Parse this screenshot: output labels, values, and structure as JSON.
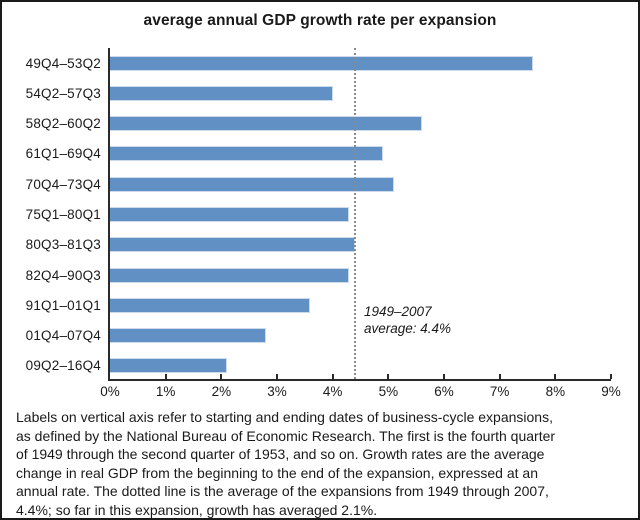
{
  "title": "average annual GDP growth rate per expansion",
  "chart_data": {
    "type": "bar",
    "orientation": "horizontal",
    "title": "average annual GDP growth rate per expansion",
    "categories": [
      "49Q4–53Q2",
      "54Q2–57Q3",
      "58Q2–60Q2",
      "61Q1–69Q4",
      "70Q4–73Q4",
      "75Q1–80Q1",
      "80Q3–81Q3",
      "82Q4–90Q3",
      "91Q1–01Q1",
      "01Q4–07Q4",
      "09Q2–16Q4"
    ],
    "values": [
      7.6,
      4.0,
      5.6,
      4.9,
      5.1,
      4.3,
      4.4,
      4.3,
      3.6,
      2.8,
      2.1
    ],
    "xlim": [
      0,
      9
    ],
    "x_tick_labels": [
      "0%",
      "1%",
      "2%",
      "3%",
      "4%",
      "5%",
      "6%",
      "7%",
      "8%",
      "9%"
    ],
    "grid": "off",
    "bar_color": "#6090c4",
    "bar_edge_color": "#ccdaec",
    "reference_line": {
      "value": 4.4,
      "style": "dotted",
      "color": "#8a8a8a",
      "label_line1": "1949–2007",
      "label_line2": "average: 4.4%"
    }
  },
  "footnote_lines": [
    "Labels on vertical axis refer to starting and ending dates of business-cycle expansions,",
    "as defined by the National Bureau of Economic Research. The first is the fourth quarter",
    "of 1949 through the second quarter of 1953, and so on. Growth rates are the average",
    "change in real GDP from the beginning to the end of the expansion, expressed at an",
    "annual rate. The dotted line is the average of the expansions from 1949 through 2007,",
    "4.4%; so far in this expansion, growth has averaged 2.1%."
  ]
}
